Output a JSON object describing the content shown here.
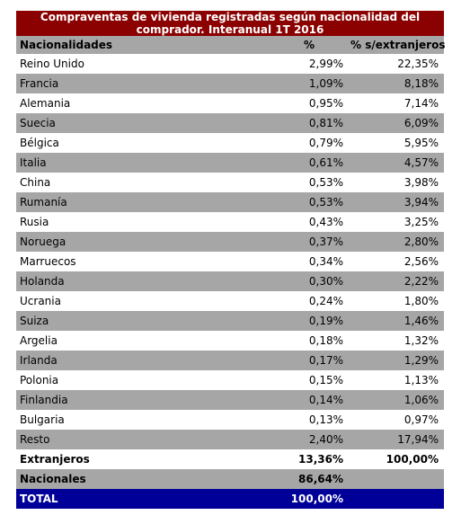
{
  "title_line1": "Compraventas de vivienda registradas según nacionalidad del",
  "title_line2": "comprador. Interanual 1T 2016",
  "headers": [
    "Nacionalidades",
    "%",
    "% s/extranjeros"
  ],
  "rows": [
    {
      "name": "Reino Unido",
      "pct": "2,99%",
      "pct_ext": "22,35%"
    },
    {
      "name": "Francia",
      "pct": "1,09%",
      "pct_ext": "8,18%"
    },
    {
      "name": "Alemania",
      "pct": "0,95%",
      "pct_ext": "7,14%"
    },
    {
      "name": "Suecia",
      "pct": "0,81%",
      "pct_ext": "6,09%"
    },
    {
      "name": "Bélgica",
      "pct": "0,79%",
      "pct_ext": "5,95%"
    },
    {
      "name": "Italia",
      "pct": "0,61%",
      "pct_ext": "4,57%"
    },
    {
      "name": "China",
      "pct": "0,53%",
      "pct_ext": "3,98%"
    },
    {
      "name": "Rumanía",
      "pct": "0,53%",
      "pct_ext": "3,94%"
    },
    {
      "name": "Rusia",
      "pct": "0,43%",
      "pct_ext": "3,25%"
    },
    {
      "name": "Noruega",
      "pct": "0,37%",
      "pct_ext": "2,80%"
    },
    {
      "name": "Marruecos",
      "pct": "0,34%",
      "pct_ext": "2,56%"
    },
    {
      "name": "Holanda",
      "pct": "0,30%",
      "pct_ext": "2,22%"
    },
    {
      "name": "Ucrania",
      "pct": "0,24%",
      "pct_ext": "1,80%"
    },
    {
      "name": "Suiza",
      "pct": "0,19%",
      "pct_ext": "1,46%"
    },
    {
      "name": "Argelia",
      "pct": "0,18%",
      "pct_ext": "1,32%"
    },
    {
      "name": "Irlanda",
      "pct": "0,17%",
      "pct_ext": "1,29%"
    },
    {
      "name": "Polonia",
      "pct": "0,15%",
      "pct_ext": "1,13%"
    },
    {
      "name": "Finlandia",
      "pct": "0,14%",
      "pct_ext": "1,06%"
    },
    {
      "name": "Bulgaria",
      "pct": "0,13%",
      "pct_ext": "0,97%"
    },
    {
      "name": "Resto",
      "pct": "2,40%",
      "pct_ext": "17,94%"
    }
  ],
  "extranjeros": {
    "name": "Extranjeros",
    "pct": "13,36%",
    "pct_ext": "100,00%"
  },
  "nacionales": {
    "name": "Nacionales",
    "pct": "86,64%",
    "pct_ext": ""
  },
  "total": {
    "name": "TOTAL",
    "pct": "100,00%",
    "pct_ext": ""
  },
  "colors": {
    "title_bg": "#8b0000",
    "stripe": "#a6a6a6",
    "total_bg": "#000099"
  }
}
